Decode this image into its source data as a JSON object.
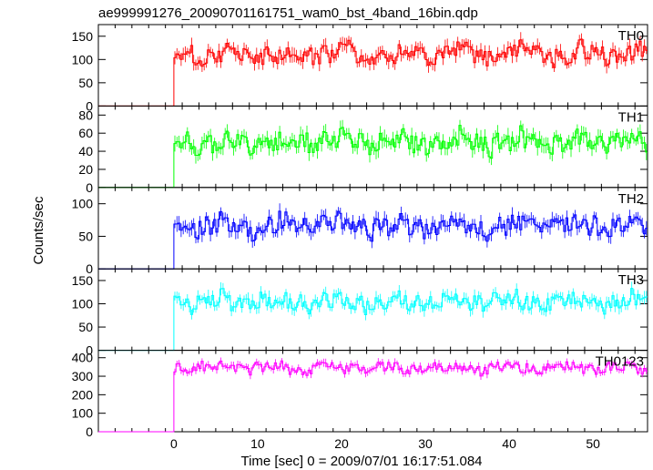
{
  "chart_data": {
    "type": "line",
    "title": "ae999991276_20090701161751_wam0_bst_4band_16bin.qdp",
    "xlabel": "Time [sec] 0 = 2009/07/01 16:17:51.084",
    "ylabel": "Counts/sec",
    "xlim": [
      -9,
      56.5
    ],
    "x_ticks": [
      0,
      10,
      20,
      30,
      40,
      50
    ],
    "x_ticklabels": [
      "0",
      "10",
      "20",
      "30",
      "40",
      "50"
    ],
    "trigger_time": 0,
    "sample_step": 0.25,
    "series": [
      {
        "name": "TH0",
        "color": "#ff0000",
        "ylim": [
          0,
          175
        ],
        "yticks": [
          0,
          50,
          100,
          150
        ],
        "ytick_labels": [
          "0",
          "50",
          "100",
          "150"
        ],
        "pre_level": 0,
        "level": 112,
        "ampl": 18
      },
      {
        "name": "TH1",
        "color": "#00ff00",
        "ylim": [
          0,
          90
        ],
        "yticks": [
          0,
          20,
          40,
          60,
          80
        ],
        "ytick_labels": [
          "0",
          "20",
          "40",
          "60",
          "80"
        ],
        "pre_level": 0,
        "level": 50,
        "ampl": 10
      },
      {
        "name": "TH2",
        "color": "#0000ff",
        "ylim": [
          0,
          125
        ],
        "yticks": [
          0,
          50,
          100
        ],
        "ytick_labels": [
          "0",
          "50",
          "100"
        ],
        "pre_level": 0,
        "level": 66,
        "ampl": 13
      },
      {
        "name": "TH3",
        "color": "#00ffff",
        "ylim": [
          0,
          175
        ],
        "yticks": [
          0,
          50,
          100,
          150
        ],
        "ytick_labels": [
          "0",
          "50",
          "100",
          "150"
        ],
        "pre_level": 0,
        "level": 105,
        "ampl": 16
      },
      {
        "name": "TH0123",
        "color": "#ff00ff",
        "ylim": [
          0,
          440
        ],
        "yticks": [
          0,
          100,
          200,
          300,
          400
        ],
        "ytick_labels": [
          "0",
          "100",
          "200",
          "300",
          "400"
        ],
        "pre_level": 0,
        "level": 345,
        "ampl": 25
      }
    ]
  }
}
